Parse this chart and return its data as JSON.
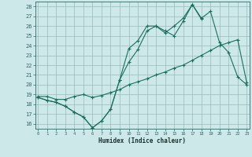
{
  "xlabel": "Humidex (Indice chaleur)",
  "x_values": [
    0,
    1,
    2,
    3,
    4,
    5,
    6,
    7,
    8,
    9,
    10,
    11,
    12,
    13,
    14,
    15,
    16,
    17,
    18,
    19,
    20,
    21,
    22,
    23
  ],
  "line1": [
    18.7,
    18.4,
    18.2,
    17.8,
    17.2,
    16.7,
    15.6,
    16.3,
    17.5,
    20.5,
    23.7,
    24.5,
    26.0,
    26.0,
    25.5,
    25.0,
    26.5,
    28.2,
    26.8,
    27.5,
    24.3,
    23.3,
    20.8,
    20.0
  ],
  "line2": [
    18.7,
    18.4,
    18.2,
    17.8,
    17.2,
    16.7,
    15.6,
    16.3,
    17.5,
    20.5,
    22.3,
    23.6,
    25.5,
    26.0,
    25.3,
    26.0,
    26.8,
    28.2,
    26.7,
    null,
    null,
    null,
    null,
    null
  ],
  "line3": [
    18.8,
    18.8,
    18.5,
    18.5,
    18.8,
    19.0,
    18.7,
    18.9,
    19.2,
    19.5,
    20.0,
    20.3,
    20.6,
    21.0,
    21.3,
    21.7,
    22.0,
    22.5,
    23.0,
    23.5,
    24.0,
    24.3,
    24.6,
    20.2
  ],
  "line_color": "#1a7060",
  "bg_color": "#cce8e8",
  "grid_color": "#99bbbb",
  "ylim": [
    15.5,
    28.5
  ],
  "xlim": [
    -0.3,
    23.3
  ],
  "yticks": [
    16,
    17,
    18,
    19,
    20,
    21,
    22,
    23,
    24,
    25,
    26,
    27,
    28
  ],
  "xticks": [
    0,
    1,
    2,
    3,
    4,
    5,
    6,
    7,
    8,
    9,
    10,
    11,
    12,
    13,
    14,
    15,
    16,
    17,
    18,
    19,
    20,
    21,
    22,
    23
  ]
}
